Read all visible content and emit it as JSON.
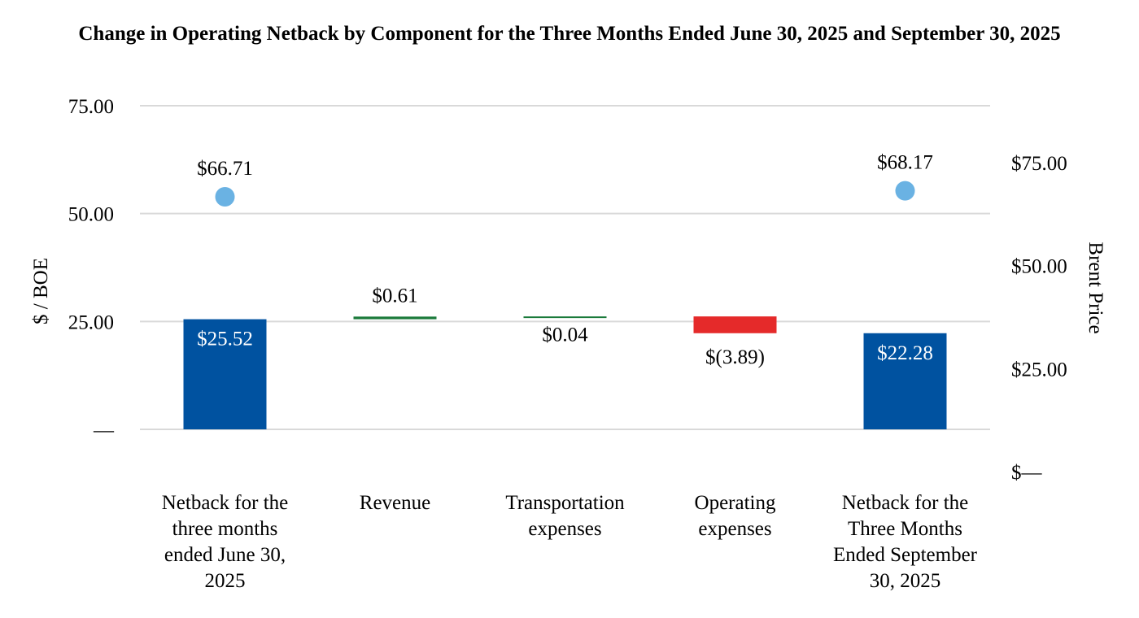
{
  "chart_data": {
    "type": "waterfall",
    "title": "Change in Operating Netback by Component for the Three Months Ended June 30, 2025 and September 30, 2025",
    "ylabel_left": "$ / BOE",
    "ylabel_right": "Brent Price",
    "left_axis": {
      "ylim": [
        0,
        75
      ],
      "ticks": [
        0,
        25,
        50,
        75
      ],
      "tick_labels": [
        "—",
        "25.00",
        "50.00",
        "75.00"
      ]
    },
    "right_axis": {
      "ylim": [
        0,
        87.5
      ],
      "ticks": [
        0,
        25,
        50,
        75
      ],
      "tick_labels": [
        "$—",
        "$25.00",
        "$50.00",
        "$75.00"
      ]
    },
    "categories": [
      [
        "Netback for the",
        "three months",
        "ended June 30,",
        "2025"
      ],
      [
        "Revenue"
      ],
      [
        "Transportation",
        "expenses"
      ],
      [
        "Operating",
        "expenses"
      ],
      [
        "Netback for the",
        "Three Months",
        "Ended September",
        "30, 2025"
      ]
    ],
    "bars": [
      {
        "kind": "total",
        "start": 0,
        "end": 25.52,
        "label": "$25.52",
        "color": "#0052a0"
      },
      {
        "kind": "increase",
        "start": 25.52,
        "end": 26.13,
        "label": "$0.61",
        "color": "#1a7a3a"
      },
      {
        "kind": "increase",
        "start": 26.13,
        "end": 26.17,
        "label": "$0.04",
        "color": "#1a7a3a"
      },
      {
        "kind": "decrease",
        "start": 26.17,
        "end": 22.28,
        "label": "$(3.89)",
        "color": "#e52a2a"
      },
      {
        "kind": "total",
        "start": 0,
        "end": 22.28,
        "label": "$22.28",
        "color": "#0052a0"
      }
    ],
    "brent_price": {
      "color": "#6ab2e3",
      "points": [
        {
          "category_index": 0,
          "value": 66.71,
          "label": "$66.71"
        },
        {
          "category_index": 4,
          "value": 68.17,
          "label": "$68.17"
        }
      ]
    },
    "gridlines": true
  }
}
